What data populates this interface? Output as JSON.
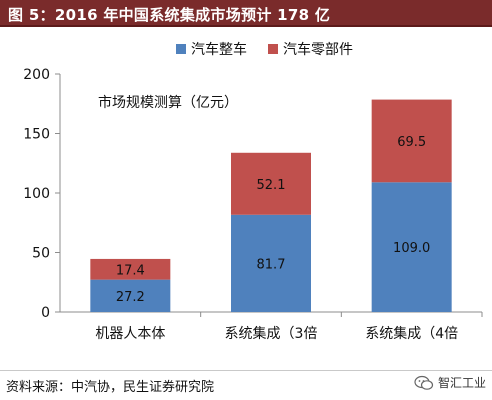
{
  "figure": {
    "title": "图 5：2016 年中国系统集成市场预计 178 亿",
    "source": "资料来源：中汽协，民生证券研究院",
    "watermark": "智汇工业"
  },
  "chart_data": {
    "type": "bar",
    "stacked": true,
    "title": "",
    "annotation": "市场规模测算（亿元）",
    "xlabel": "",
    "ylabel": "",
    "categories": [
      "机器人本体",
      "系统集成（3倍",
      "系统集成（4倍"
    ],
    "series": [
      {
        "name": "汽车整车",
        "color": "#4f81bd",
        "values": [
          27.2,
          81.7,
          109.0
        ],
        "labels": [
          "27.2",
          "81.7",
          "109.0"
        ]
      },
      {
        "name": "汽车零部件",
        "color": "#c0504d",
        "values": [
          17.4,
          52.1,
          69.5
        ],
        "labels": [
          "17.4",
          "52.1",
          "69.5"
        ]
      }
    ],
    "ylim": [
      0,
      200
    ],
    "yticks": [
      0,
      50,
      100,
      150,
      200
    ],
    "grid": false,
    "legend": "top-right"
  }
}
